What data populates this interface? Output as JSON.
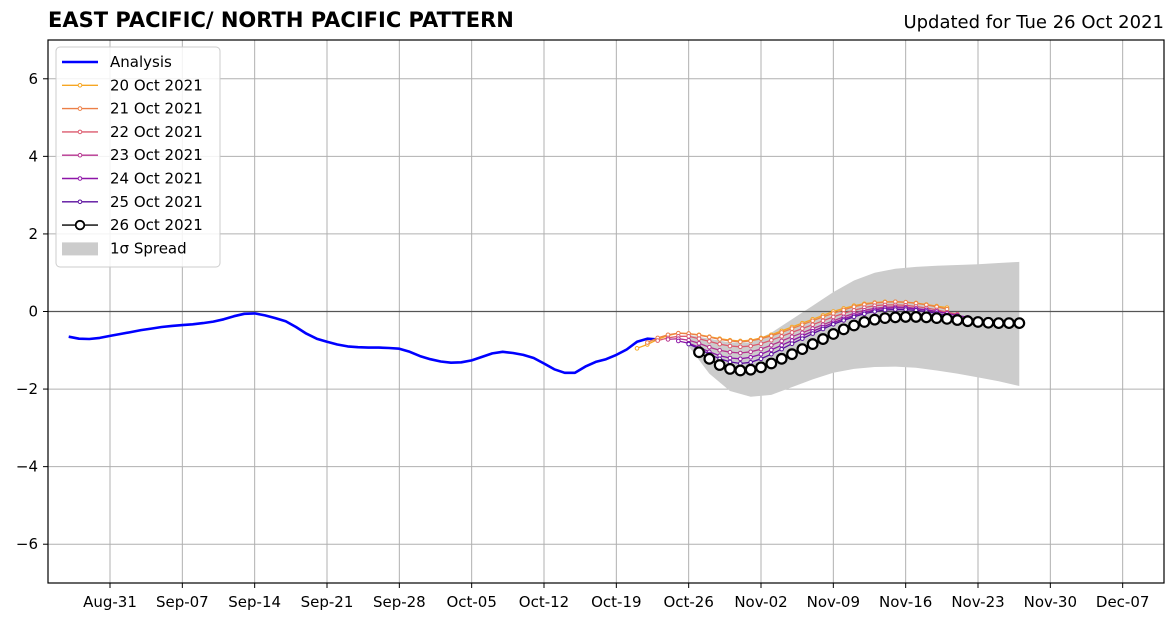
{
  "chart_data": {
    "type": "line",
    "title": "EAST PACIFIC/ NORTH PACIFIC PATTERN",
    "subtitle": "Updated for Tue 26 Oct 2021",
    "xlabel": "",
    "ylabel": "",
    "ylim": [
      -7,
      7
    ],
    "yticks": [
      -6,
      -4,
      -2,
      0,
      2,
      4,
      6
    ],
    "ytick_labels": [
      "−6",
      "−4",
      "−2",
      "0",
      "2",
      "4",
      "6"
    ],
    "xlim": [
      "2021-08-25",
      "2021-12-11"
    ],
    "xticks": [
      "2021-08-31",
      "2021-09-07",
      "2021-09-14",
      "2021-09-21",
      "2021-09-28",
      "2021-10-05",
      "2021-10-12",
      "2021-10-19",
      "2021-10-26",
      "2021-11-02",
      "2021-11-09",
      "2021-11-16",
      "2021-11-23",
      "2021-11-30",
      "2021-12-07"
    ],
    "xtick_labels": [
      "Aug-31",
      "Sep-07",
      "Sep-14",
      "Sep-21",
      "Sep-28",
      "Oct-05",
      "Oct-12",
      "Oct-19",
      "Oct-26",
      "Nov-02",
      "Nov-09",
      "Nov-16",
      "Nov-23",
      "Nov-30",
      "Dec-07"
    ],
    "grid": true,
    "legend_position": "top-left",
    "analysis": {
      "name": "Analysis",
      "color": "#0000ff",
      "points": [
        [
          "2021-08-27",
          -0.65
        ],
        [
          "2021-08-28",
          -0.7
        ],
        [
          "2021-08-29",
          -0.71
        ],
        [
          "2021-08-30",
          -0.68
        ],
        [
          "2021-08-31",
          -0.63
        ],
        [
          "2021-09-01",
          -0.58
        ],
        [
          "2021-09-02",
          -0.53
        ],
        [
          "2021-09-03",
          -0.48
        ],
        [
          "2021-09-04",
          -0.44
        ],
        [
          "2021-09-05",
          -0.4
        ],
        [
          "2021-09-06",
          -0.37
        ],
        [
          "2021-09-07",
          -0.35
        ],
        [
          "2021-09-08",
          -0.33
        ],
        [
          "2021-09-09",
          -0.3
        ],
        [
          "2021-09-10",
          -0.26
        ],
        [
          "2021-09-11",
          -0.2
        ],
        [
          "2021-09-12",
          -0.12
        ],
        [
          "2021-09-13",
          -0.06
        ],
        [
          "2021-09-14",
          -0.05
        ],
        [
          "2021-09-15",
          -0.1
        ],
        [
          "2021-09-16",
          -0.17
        ],
        [
          "2021-09-17",
          -0.25
        ],
        [
          "2021-09-18",
          -0.4
        ],
        [
          "2021-09-19",
          -0.57
        ],
        [
          "2021-09-20",
          -0.7
        ],
        [
          "2021-09-21",
          -0.78
        ],
        [
          "2021-09-22",
          -0.85
        ],
        [
          "2021-09-23",
          -0.9
        ],
        [
          "2021-09-24",
          -0.92
        ],
        [
          "2021-09-25",
          -0.93
        ],
        [
          "2021-09-26",
          -0.93
        ],
        [
          "2021-09-27",
          -0.94
        ],
        [
          "2021-09-28",
          -0.96
        ],
        [
          "2021-09-29",
          -1.04
        ],
        [
          "2021-09-30",
          -1.15
        ],
        [
          "2021-10-01",
          -1.23
        ],
        [
          "2021-10-02",
          -1.29
        ],
        [
          "2021-10-03",
          -1.32
        ],
        [
          "2021-10-04",
          -1.31
        ],
        [
          "2021-10-05",
          -1.26
        ],
        [
          "2021-10-06",
          -1.17
        ],
        [
          "2021-10-07",
          -1.08
        ],
        [
          "2021-10-08",
          -1.04
        ],
        [
          "2021-10-09",
          -1.07
        ],
        [
          "2021-10-10",
          -1.12
        ],
        [
          "2021-10-11",
          -1.2
        ],
        [
          "2021-10-12",
          -1.34
        ],
        [
          "2021-10-13",
          -1.49
        ],
        [
          "2021-10-14",
          -1.58
        ],
        [
          "2021-10-15",
          -1.58
        ],
        [
          "2021-10-16",
          -1.42
        ],
        [
          "2021-10-17",
          -1.3
        ],
        [
          "2021-10-18",
          -1.23
        ],
        [
          "2021-10-19",
          -1.12
        ],
        [
          "2021-10-20",
          -0.98
        ],
        [
          "2021-10-21",
          -0.78
        ],
        [
          "2021-10-22",
          -0.7
        ],
        [
          "2021-10-23",
          -0.72
        ]
      ]
    },
    "spread": {
      "name": "1σ Spread",
      "color": "#cccccc",
      "x": [
        "2021-10-26",
        "2021-10-28",
        "2021-10-30",
        "2021-11-01",
        "2021-11-03",
        "2021-11-05",
        "2021-11-07",
        "2021-11-09",
        "2021-11-11",
        "2021-11-13",
        "2021-11-15",
        "2021-11-17",
        "2021-11-19",
        "2021-11-21",
        "2021-11-23",
        "2021-11-25",
        "2021-11-27"
      ],
      "upper": [
        -0.6,
        -0.7,
        -0.8,
        -0.8,
        -0.55,
        -0.2,
        0.15,
        0.5,
        0.8,
        1.0,
        1.1,
        1.15,
        1.18,
        1.2,
        1.22,
        1.25,
        1.28
      ],
      "lower": [
        -0.9,
        -1.6,
        -2.05,
        -2.2,
        -2.15,
        -1.95,
        -1.75,
        -1.58,
        -1.48,
        -1.43,
        -1.42,
        -1.45,
        -1.52,
        -1.6,
        -1.7,
        -1.8,
        -1.92
      ]
    },
    "forecast_days": [
      "2021-10-21",
      "2021-10-22",
      "2021-10-23",
      "2021-10-24",
      "2021-10-25",
      "2021-10-26",
      "2021-10-27",
      "2021-10-28",
      "2021-10-29",
      "2021-10-30",
      "2021-10-31",
      "2021-11-01",
      "2021-11-02",
      "2021-11-03",
      "2021-11-04",
      "2021-11-05",
      "2021-11-06",
      "2021-11-07",
      "2021-11-08",
      "2021-11-09",
      "2021-11-10",
      "2021-11-11",
      "2021-11-12",
      "2021-11-13",
      "2021-11-14",
      "2021-11-15",
      "2021-11-16",
      "2021-11-17",
      "2021-11-18",
      "2021-11-19",
      "2021-11-20",
      "2021-11-21",
      "2021-11-22",
      "2021-11-23",
      "2021-11-24",
      "2021-11-25",
      "2021-11-26",
      "2021-11-27"
    ],
    "series": [
      {
        "name": "20 Oct 2021",
        "color": "#f6a623",
        "open_marker": false,
        "start_index": 0,
        "values": [
          -0.95,
          -0.85,
          -0.72,
          -0.62,
          -0.56,
          -0.57,
          -0.6,
          -0.65,
          -0.7,
          -0.74,
          -0.76,
          -0.74,
          -0.68,
          -0.6,
          -0.5,
          -0.4,
          -0.3,
          -0.2,
          -0.1,
          0.0,
          0.08,
          0.15,
          0.2,
          0.23,
          0.25,
          0.25,
          0.24,
          0.22,
          0.18,
          0.14,
          0.1
        ]
      },
      {
        "name": "21 Oct 2021",
        "color": "#ec7f47",
        "open_marker": false,
        "start_index": 1,
        "values": [
          -0.8,
          -0.68,
          -0.6,
          -0.56,
          -0.57,
          -0.61,
          -0.66,
          -0.72,
          -0.76,
          -0.78,
          -0.76,
          -0.7,
          -0.63,
          -0.54,
          -0.44,
          -0.34,
          -0.24,
          -0.14,
          -0.05,
          0.04,
          0.12,
          0.18,
          0.22,
          0.24,
          0.25,
          0.24,
          0.21,
          0.17,
          0.12,
          0.06
        ]
      },
      {
        "name": "22 Oct 2021",
        "color": "#dc5a6e",
        "open_marker": false,
        "start_index": 2,
        "values": [
          -0.75,
          -0.68,
          -0.64,
          -0.64,
          -0.7,
          -0.77,
          -0.84,
          -0.89,
          -0.91,
          -0.89,
          -0.83,
          -0.74,
          -0.64,
          -0.54,
          -0.44,
          -0.34,
          -0.24,
          -0.14,
          -0.05,
          0.03,
          0.1,
          0.15,
          0.17,
          0.17,
          0.16,
          0.13,
          0.09,
          0.04,
          -0.02,
          -0.07
        ]
      },
      {
        "name": "23 Oct 2021",
        "color": "#b5338f",
        "open_marker": false,
        "start_index": 3,
        "values": [
          -0.72,
          -0.7,
          -0.74,
          -0.82,
          -0.92,
          -1.0,
          -1.05,
          -1.07,
          -1.04,
          -0.97,
          -0.87,
          -0.76,
          -0.65,
          -0.55,
          -0.44,
          -0.34,
          -0.24,
          -0.14,
          -0.05,
          0.03,
          0.08,
          0.11,
          0.12,
          0.11,
          0.08,
          0.04,
          0.0,
          -0.05,
          -0.1
        ]
      },
      {
        "name": "24 Oct 2021",
        "color": "#8e15a8",
        "open_marker": false,
        "start_index": 4,
        "values": [
          -0.76,
          -0.82,
          -0.92,
          -1.04,
          -1.14,
          -1.2,
          -1.22,
          -1.18,
          -1.1,
          -0.99,
          -0.87,
          -0.75,
          -0.63,
          -0.51,
          -0.4,
          -0.29,
          -0.19,
          -0.1,
          -0.02,
          0.04,
          0.08,
          0.09,
          0.09,
          0.07,
          0.04,
          0.0,
          -0.05,
          -0.1,
          -0.15
        ]
      },
      {
        "name": "25 Oct 2021",
        "color": "#5a0e9e",
        "open_marker": false,
        "start_index": 5,
        "values": [
          -0.84,
          -0.96,
          -1.1,
          -1.22,
          -1.3,
          -1.34,
          -1.31,
          -1.22,
          -1.1,
          -0.97,
          -0.83,
          -0.7,
          -0.57,
          -0.45,
          -0.33,
          -0.23,
          -0.14,
          -0.06,
          0.0,
          0.04,
          0.05,
          0.05,
          0.03,
          0.0,
          -0.05,
          -0.1,
          -0.15,
          -0.2
        ]
      },
      {
        "name": "26 Oct 2021",
        "color": "#000000",
        "open_marker": true,
        "start_index": 6,
        "values": [
          -1.05,
          -1.22,
          -1.38,
          -1.48,
          -1.52,
          -1.5,
          -1.44,
          -1.34,
          -1.22,
          -1.1,
          -0.97,
          -0.84,
          -0.71,
          -0.58,
          -0.46,
          -0.36,
          -0.27,
          -0.21,
          -0.17,
          -0.15,
          -0.14,
          -0.14,
          -0.15,
          -0.17,
          -0.19,
          -0.22,
          -0.25,
          -0.27,
          -0.29,
          -0.3,
          -0.3,
          -0.3
        ]
      }
    ]
  }
}
